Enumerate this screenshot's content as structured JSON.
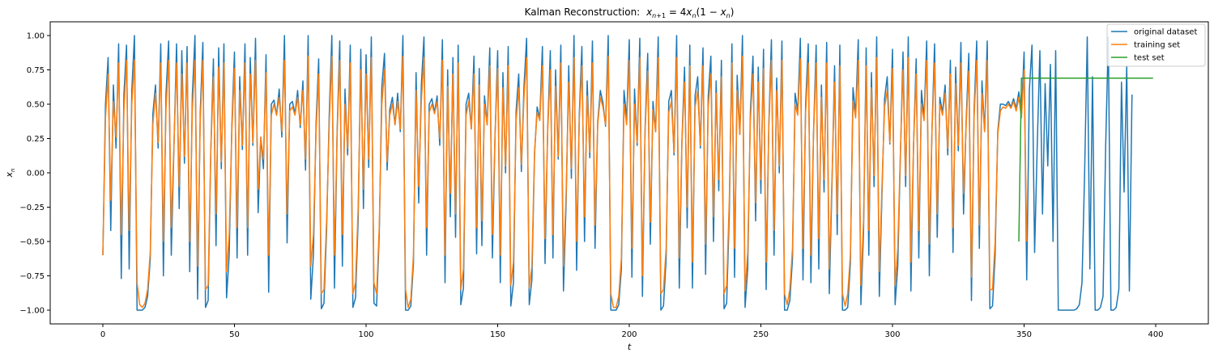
{
  "chart_data": {
    "type": "line",
    "title": "Kalman Reconstruction: x_{n+1} = 4x_n(1 − x_n)",
    "title_prefix": "Kalman Reconstruction:",
    "title_math": "x",
    "xlabel": "t",
    "ylabel": "x_n",
    "xlim": [
      -20,
      420
    ],
    "ylim": [
      -1.1,
      1.1
    ],
    "xticks": [
      0,
      50,
      100,
      150,
      200,
      250,
      300,
      350,
      400
    ],
    "yticks": [
      1.0,
      0.75,
      0.5,
      0.25,
      0.0,
      -0.25,
      -0.5,
      -0.75,
      -1.0
    ],
    "ytick_labels": [
      "1.00",
      "0.75",
      "0.50",
      "0.25",
      "0.00",
      "−0.25",
      "−0.50",
      "−0.75",
      "−1.00"
    ],
    "grid": false,
    "legend_position": "top-right",
    "series": [
      {
        "name": "original dataset",
        "color": "#1f77b4",
        "x_start": 0,
        "values": [
          -0.6,
          0.5,
          0.84,
          -0.42,
          0.64,
          0.18,
          0.94,
          -0.77,
          0.57,
          0.93,
          -0.7,
          0.6,
          1.0,
          -1.0,
          -1.0,
          -1.0,
          -0.98,
          -0.9,
          -0.63,
          0.43,
          0.64,
          0.18,
          0.94,
          -0.75,
          0.58,
          0.96,
          -0.6,
          0.18,
          0.94,
          -0.26,
          0.89,
          0.07,
          0.92,
          -0.72,
          0.57,
          1.0,
          -0.92,
          0.44,
          0.95,
          -0.98,
          -0.93,
          0.15,
          0.83,
          -0.53,
          0.91,
          0.03,
          0.94,
          -0.91,
          -0.6,
          0.34,
          0.88,
          -0.62,
          0.7,
          0.17,
          0.94,
          -0.6,
          0.84,
          0.2,
          0.98,
          -0.29,
          0.26,
          0.03,
          0.86,
          -0.87,
          0.5,
          0.53,
          0.42,
          0.61,
          0.26,
          1.0,
          -0.51,
          0.5,
          0.52,
          0.43,
          0.6,
          0.33,
          0.67,
          0.02,
          1.0,
          -0.92,
          -0.6,
          0.36,
          0.83,
          -0.99,
          -0.95,
          -0.42,
          0.42,
          1.0,
          -0.84,
          0.3,
          0.96,
          -0.68,
          0.61,
          0.13,
          0.93,
          -0.98,
          -0.91,
          -0.34,
          0.9,
          -0.26,
          0.86,
          0.04,
          0.99,
          -0.95,
          -0.97,
          -0.46,
          0.63,
          0.87,
          0.02,
          0.46,
          0.55,
          0.35,
          0.58,
          0.3,
          1.0,
          -1.0,
          -1.0,
          -0.97,
          -0.66,
          0.73,
          -0.22,
          0.64,
          0.99,
          -0.6,
          0.5,
          0.54,
          0.44,
          0.56,
          0.2,
          0.97,
          -0.8,
          0.75,
          -0.32,
          0.84,
          -0.47,
          0.93,
          -0.96,
          -0.84,
          0.5,
          0.58,
          0.32,
          0.85,
          -0.59,
          0.76,
          -0.53,
          0.56,
          0.35,
          0.91,
          -0.62,
          0.27,
          0.89,
          -0.8,
          0.73,
          0.0,
          0.92,
          -0.97,
          -0.8,
          0.45,
          0.72,
          0.01,
          0.63,
          0.98,
          -0.96,
          -0.78,
          0.13,
          0.48,
          0.4,
          0.92,
          -0.66,
          0.32,
          0.89,
          -0.62,
          0.75,
          0.1,
          0.93,
          -0.86,
          -0.22,
          0.78,
          -0.04,
          1.0,
          -0.71,
          0.42,
          0.92,
          -0.5,
          0.67,
          0.11,
          0.96,
          -0.55,
          0.37,
          0.6,
          0.51,
          0.34,
          1.0,
          -1.0,
          -1.0,
          -1.0,
          -0.96,
          -0.7,
          0.6,
          0.39,
          0.97,
          -0.76,
          0.61,
          0.2,
          0.98,
          -0.9,
          0.32,
          0.87,
          -0.52,
          0.52,
          0.3,
          0.99,
          -1.0,
          -0.97,
          -0.63,
          0.52,
          0.6,
          0.13,
          1.0,
          -0.84,
          0.23,
          0.77,
          -0.4,
          0.93,
          -0.84,
          0.56,
          0.7,
          0.18,
          0.91,
          -0.74,
          0.56,
          0.85,
          -0.5,
          0.67,
          -0.13,
          0.82,
          -0.99,
          -0.95,
          -0.3,
          0.94,
          -0.76,
          0.71,
          0.28,
          1.0,
          -0.98,
          -0.7,
          0.44,
          0.85,
          -0.35,
          0.77,
          -0.15,
          0.9,
          -0.85,
          0.34,
          0.97,
          -0.6,
          0.69,
          0.0,
          0.96,
          -1.0,
          -1.0,
          -0.93,
          -0.63,
          0.58,
          0.45,
          0.98,
          -0.78,
          0.5,
          0.94,
          -0.8,
          0.29,
          0.93,
          -0.7,
          0.64,
          -0.14,
          0.95,
          -0.88,
          -0.1,
          0.78,
          -0.45,
          0.93,
          -1.0,
          -1.0,
          -0.98,
          -0.66,
          0.62,
          0.43,
          0.97,
          -0.96,
          -0.44,
          0.91,
          -0.6,
          0.73,
          -0.1,
          0.99,
          -0.9,
          -0.16,
          0.54,
          0.7,
          0.21,
          0.9,
          -0.96,
          -0.68,
          0.12,
          0.88,
          -0.1,
          0.99,
          -0.86,
          0.2,
          0.83,
          -0.62,
          0.6,
          0.4,
          0.96,
          -0.75,
          0.31,
          0.94,
          -0.47,
          0.55,
          0.44,
          0.64,
          0.13,
          0.82,
          -0.58,
          0.77,
          0.16,
          0.95,
          -0.3,
          0.38,
          0.87,
          -0.93,
          0.45,
          0.96,
          -0.55,
          0.67,
          0.3,
          0.96,
          -0.99,
          -0.97,
          -0.6,
          0.3,
          0.5,
          0.5,
          0.49,
          0.52,
          0.48,
          0.54,
          0.47,
          0.59,
          0.42,
          0.88,
          -0.78,
          0.6,
          0.93,
          -0.58,
          0.2,
          0.89,
          -0.3,
          0.65,
          0.05,
          0.79,
          -0.5,
          0.89,
          -1.0,
          -1.0,
          -1.0,
          -1.0,
          -1.0,
          -1.0,
          -1.0,
          -0.99,
          -0.96,
          -0.8,
          0.0,
          0.99,
          -0.7,
          0.7,
          -1.0,
          -1.0,
          -0.98,
          -0.9,
          0.2,
          0.99,
          -1.0,
          -1.0,
          -0.98,
          -0.85,
          0.66,
          -0.14,
          0.78,
          -0.86,
          0.57
        ]
      },
      {
        "name": "training set",
        "color": "#ff7f0e",
        "x_start": 0,
        "values": [
          -0.6,
          0.4,
          0.72,
          -0.2,
          0.52,
          0.26,
          0.8,
          -0.45,
          0.45,
          0.82,
          -0.42,
          0.5,
          0.82,
          -0.8,
          -0.96,
          -0.98,
          -0.95,
          -0.85,
          -0.58,
          0.35,
          0.58,
          0.22,
          0.8,
          -0.5,
          0.47,
          0.82,
          -0.4,
          0.2,
          0.8,
          -0.1,
          0.72,
          0.12,
          0.8,
          -0.5,
          0.46,
          0.82,
          -0.68,
          0.38,
          0.82,
          -0.85,
          -0.82,
          0.15,
          0.7,
          -0.3,
          0.77,
          0.08,
          0.8,
          -0.72,
          -0.45,
          0.3,
          0.76,
          -0.4,
          0.6,
          0.2,
          0.8,
          -0.4,
          0.72,
          0.22,
          0.82,
          -0.12,
          0.26,
          0.1,
          0.73,
          -0.6,
          0.42,
          0.5,
          0.42,
          0.55,
          0.3,
          0.82,
          -0.3,
          0.45,
          0.48,
          0.42,
          0.55,
          0.35,
          0.6,
          0.1,
          0.85,
          -0.68,
          -0.45,
          0.3,
          0.72,
          -0.88,
          -0.85,
          -0.35,
          0.35,
          0.85,
          -0.6,
          0.28,
          0.82,
          -0.45,
          0.5,
          0.18,
          0.8,
          -0.88,
          -0.8,
          -0.25,
          0.75,
          -0.12,
          0.72,
          0.1,
          0.84,
          -0.8,
          -0.88,
          -0.4,
          0.5,
          0.75,
          0.08,
          0.42,
          0.5,
          0.35,
          0.52,
          0.32,
          0.85,
          -0.85,
          -0.98,
          -0.92,
          -0.6,
          0.6,
          -0.1,
          0.52,
          0.84,
          -0.4,
          0.44,
          0.5,
          0.43,
          0.52,
          0.25,
          0.82,
          -0.6,
          0.63,
          -0.15,
          0.72,
          -0.3,
          0.8,
          -0.85,
          -0.7,
          0.42,
          0.52,
          0.32,
          0.72,
          -0.4,
          0.64,
          -0.35,
          0.5,
          0.35,
          0.78,
          -0.45,
          0.28,
          0.76,
          -0.6,
          0.62,
          0.05,
          0.78,
          -0.82,
          -0.65,
          0.38,
          0.62,
          0.06,
          0.55,
          0.84,
          -0.84,
          -0.68,
          0.15,
          0.44,
          0.38,
          0.78,
          -0.48,
          0.3,
          0.75,
          -0.45,
          0.63,
          0.12,
          0.8,
          -0.68,
          -0.15,
          0.66,
          0.03,
          0.84,
          -0.5,
          0.38,
          0.78,
          -0.32,
          0.56,
          0.15,
          0.8,
          -0.38,
          0.35,
          0.55,
          0.48,
          0.35,
          0.85,
          -0.88,
          -0.98,
          -0.98,
          -0.9,
          -0.62,
          0.5,
          0.35,
          0.82,
          -0.55,
          0.5,
          0.22,
          0.84,
          -0.75,
          0.3,
          0.74,
          -0.36,
          0.46,
          0.3,
          0.84,
          -0.88,
          -0.85,
          -0.55,
          0.44,
          0.52,
          0.15,
          0.84,
          -0.62,
          0.22,
          0.66,
          -0.25,
          0.78,
          -0.65,
          0.48,
          0.6,
          0.2,
          0.78,
          -0.52,
          0.48,
          0.72,
          -0.32,
          0.58,
          -0.05,
          0.7,
          -0.88,
          -0.82,
          -0.2,
          0.8,
          -0.55,
          0.6,
          0.28,
          0.85,
          -0.86,
          -0.58,
          0.38,
          0.72,
          -0.22,
          0.66,
          -0.05,
          0.76,
          -0.65,
          0.32,
          0.82,
          -0.42,
          0.6,
          0.05,
          0.82,
          -0.88,
          -0.96,
          -0.85,
          -0.55,
          0.5,
          0.42,
          0.83,
          -0.55,
          0.44,
          0.8,
          -0.6,
          0.28,
          0.8,
          -0.48,
          0.55,
          -0.05,
          0.8,
          -0.7,
          -0.05,
          0.66,
          -0.3,
          0.78,
          -0.88,
          -0.97,
          -0.88,
          -0.6,
          0.52,
          0.4,
          0.82,
          -0.82,
          -0.35,
          0.78,
          -0.42,
          0.62,
          -0.02,
          0.84,
          -0.72,
          -0.1,
          0.48,
          0.6,
          0.22,
          0.76,
          -0.82,
          -0.55,
          0.15,
          0.75,
          -0.02,
          0.84,
          -0.65,
          0.2,
          0.72,
          -0.42,
          0.5,
          0.38,
          0.82,
          -0.52,
          0.3,
          0.8,
          -0.3,
          0.5,
          0.42,
          0.58,
          0.18,
          0.72,
          -0.4,
          0.65,
          0.2,
          0.8,
          -0.15,
          0.35,
          0.74,
          -0.76,
          0.4,
          0.82,
          -0.38,
          0.58,
          0.3,
          0.82,
          -0.85,
          -0.85,
          -0.5,
          0.28,
          0.45,
          0.48,
          0.47,
          0.5,
          0.47,
          0.52,
          0.45,
          0.55,
          0.4,
          0.75,
          -0.5
        ]
      },
      {
        "name": "test set",
        "color": "#2ca02c",
        "x_start": 348,
        "values": [
          -0.5,
          0.69,
          0.69,
          0.69,
          0.69,
          0.69,
          0.69,
          0.69,
          0.69,
          0.69,
          0.69,
          0.69,
          0.69,
          0.69,
          0.69,
          0.69,
          0.69,
          0.69,
          0.69,
          0.69,
          0.69,
          0.69,
          0.69,
          0.69,
          0.69,
          0.69,
          0.69,
          0.69,
          0.69,
          0.69,
          0.69,
          0.69,
          0.69,
          0.69,
          0.69,
          0.69,
          0.69,
          0.69,
          0.69,
          0.69,
          0.69,
          0.69,
          0.69,
          0.69,
          0.69,
          0.69,
          0.69,
          0.69,
          0.69,
          0.69,
          0.69,
          0.69
        ]
      }
    ]
  }
}
